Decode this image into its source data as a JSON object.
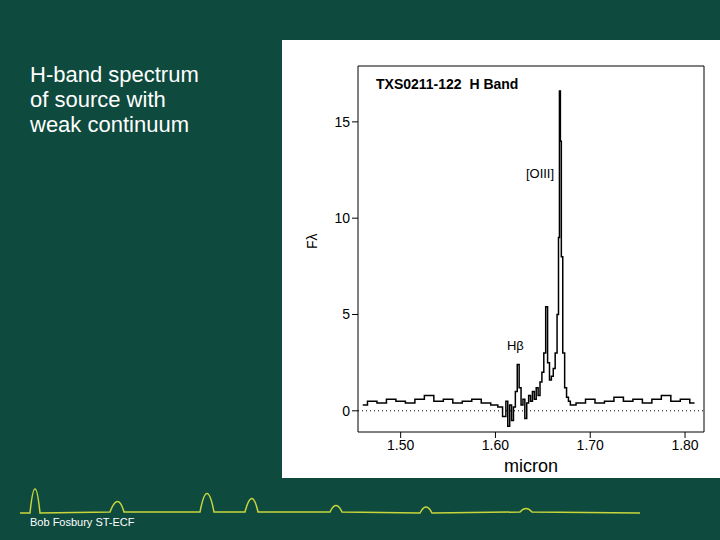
{
  "slide": {
    "heading": "H-band spectrum\nof source with\nweak continuum",
    "footer": "Bob Fosbury ST-ECF"
  },
  "chart_data": {
    "type": "line",
    "title": "TXS0211-122  H Band",
    "x_label": "micron",
    "y_label": "Fλ",
    "color": "#000000",
    "line_style": "step",
    "x": [
      1.46,
      1.47,
      1.48,
      1.49,
      1.5,
      1.51,
      1.52,
      1.53,
      1.54,
      1.55,
      1.56,
      1.57,
      1.58,
      1.59,
      1.6,
      1.605,
      1.61,
      1.612,
      1.614,
      1.616,
      1.618,
      1.62,
      1.622,
      1.624,
      1.626,
      1.628,
      1.63,
      1.632,
      1.634,
      1.636,
      1.638,
      1.64,
      1.642,
      1.644,
      1.646,
      1.648,
      1.65,
      1.652,
      1.654,
      1.656,
      1.658,
      1.66,
      1.662,
      1.664,
      1.666,
      1.667,
      1.668,
      1.669,
      1.67,
      1.672,
      1.674,
      1.676,
      1.678,
      1.68,
      1.69,
      1.7,
      1.71,
      1.72,
      1.73,
      1.74,
      1.75,
      1.76,
      1.77,
      1.78,
      1.79,
      1.8,
      1.81
    ],
    "values": [
      0.3,
      0.5,
      0.4,
      0.6,
      0.5,
      0.4,
      0.6,
      0.8,
      0.5,
      0.6,
      0.4,
      0.5,
      0.6,
      0.4,
      0.3,
      0.2,
      -0.3,
      0.5,
      -0.8,
      0.3,
      -0.5,
      0.2,
      1.0,
      2.4,
      1.2,
      0.3,
      0.6,
      -0.4,
      0.4,
      0.8,
      0.5,
      1.0,
      0.6,
      1.2,
      0.8,
      1.5,
      2.0,
      3.0,
      5.4,
      2.5,
      1.6,
      1.8,
      2.2,
      3.0,
      5.0,
      9.0,
      16.6,
      14.0,
      8.0,
      3.0,
      1.2,
      0.7,
      0.5,
      0.3,
      0.4,
      0.6,
      0.4,
      0.5,
      0.7,
      0.5,
      0.6,
      0.4,
      0.6,
      0.8,
      0.5,
      0.6,
      0.4
    ],
    "xlim": [
      1.455,
      1.82
    ],
    "xticks": [
      {
        "value": 1.5,
        "label": "1.50"
      },
      {
        "value": 1.6,
        "label": "1.60"
      },
      {
        "value": 1.7,
        "label": "1.70"
      },
      {
        "value": 1.8,
        "label": "1.80"
      }
    ],
    "ylim": [
      -1.1,
      17.9
    ],
    "yticks": [
      0,
      5,
      10,
      15
    ],
    "annotations": [
      {
        "text": "[OIII]",
        "x": 1.647,
        "y": 12.3
      },
      {
        "text": "Hβ",
        "x": 1.621,
        "y": 3.4
      }
    ]
  }
}
